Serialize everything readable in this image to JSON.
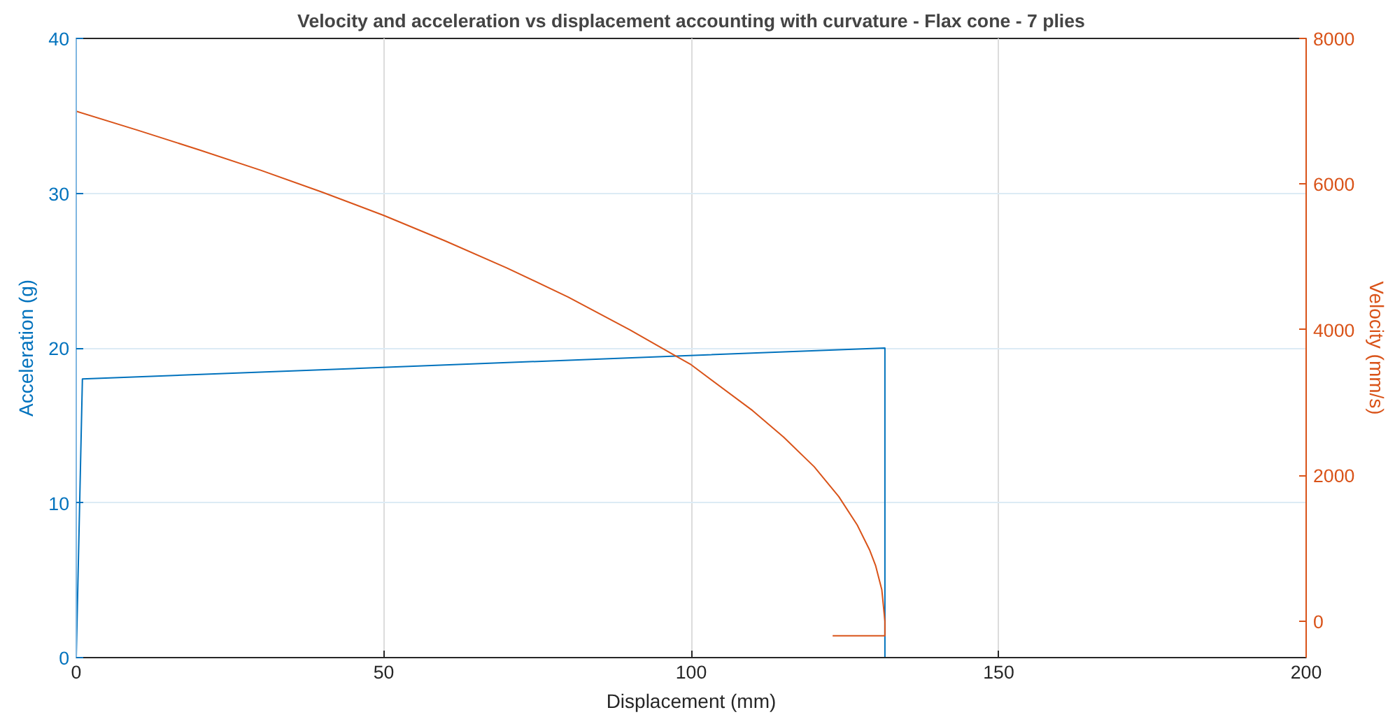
{
  "chart_data": {
    "type": "line",
    "title": "Velocity and acceleration vs displacement accounting with curvature - Flax cone - 7 plies",
    "xlabel": "Displacement (mm)",
    "ylabel": "Acceleration (g)",
    "y2label": "Velocity (mm/s)",
    "xlim": [
      0,
      200
    ],
    "xticks": [
      0,
      50,
      100,
      150,
      200
    ],
    "ylim": [
      0,
      40
    ],
    "yticks": [
      0,
      10,
      20,
      30,
      40
    ],
    "y2lim": [
      -500,
      8000
    ],
    "y2ticks": [
      0,
      2000,
      4000,
      6000,
      8000
    ],
    "grid": true,
    "line_style": "solid",
    "series": [
      {
        "color": "#0072bd",
        "x": [
          0,
          1,
          131.5,
          131.5
        ],
        "values": [
          0,
          18,
          20,
          0
        ]
      },
      {
        "color": "#d95319",
        "axis": "y2",
        "x": [
          0,
          10,
          20,
          30,
          40,
          50,
          60,
          70,
          80,
          90,
          100,
          110,
          115,
          120,
          124,
          127,
          129,
          130,
          131,
          131.5,
          131.5,
          123
        ],
        "values": [
          7000,
          6740,
          6470,
          6190,
          5890,
          5570,
          5220,
          4850,
          4450,
          4000,
          3520,
          2890,
          2530,
          2120,
          1710,
          1320,
          980,
          760,
          430,
          0,
          -200,
          -200
        ]
      }
    ]
  }
}
